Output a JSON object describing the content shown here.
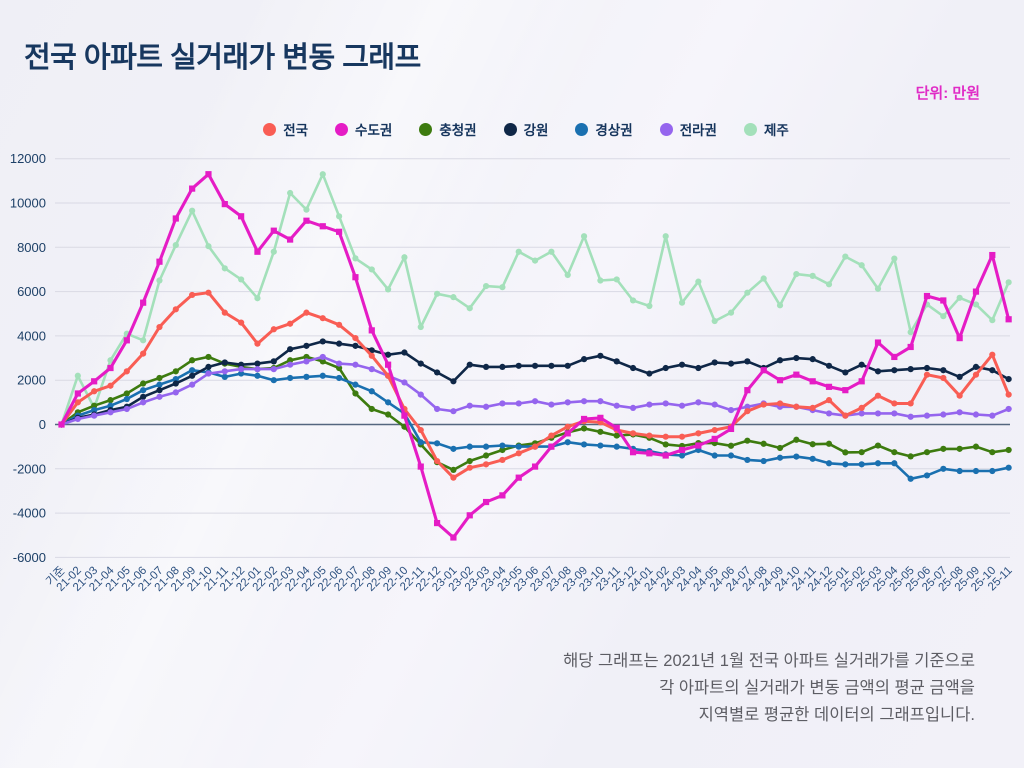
{
  "page": {
    "title": "전국 아파트 실거래가 변동 그래프",
    "unit_label": "단위: 만원"
  },
  "caption": {
    "line1": "해당 그래프는 2021년 1월 전국 아파트 실거래가를 기준으로",
    "line2": "각 아파트의 실거래가 변동 금액의 평균 금액을",
    "line3": "지역별로 평균한 데이터의 그래프입니다."
  },
  "chart_data": {
    "type": "line",
    "title": "전국 아파트 실거래가 변동 그래프",
    "unit": "만원",
    "grid": true,
    "legend_position": "top",
    "ylim": [
      -6000,
      12000
    ],
    "y_ticks": [
      12000,
      10000,
      8000,
      6000,
      4000,
      2000,
      0,
      -2000,
      -4000,
      -6000
    ],
    "x_labels": [
      "기준",
      "21-02",
      "21-03",
      "21-04",
      "21-05",
      "21-06",
      "21-07",
      "21-08",
      "21-09",
      "21-10",
      "21-11",
      "21-12",
      "22-01",
      "22-02",
      "22-03",
      "22-04",
      "22-05",
      "22-06",
      "22-07",
      "22-08",
      "22-09",
      "22-10",
      "22-11",
      "22-12",
      "23-01",
      "23-02",
      "23-03",
      "23-04",
      "23-05",
      "23-06",
      "23-07",
      "23-08",
      "23-09",
      "23-10",
      "23-11",
      "23-12",
      "24-01",
      "24-02",
      "24-03",
      "24-04",
      "24-05",
      "24-06",
      "24-07",
      "24-08",
      "24-09",
      "24-10",
      "24-11",
      "24-12",
      "25-01",
      "25-02",
      "25-03",
      "25-04",
      "25-05",
      "25-06",
      "25-07",
      "25-08",
      "25-09",
      "25-10",
      "25-11"
    ],
    "series": [
      {
        "name": "전국",
        "color": "#f95d54",
        "values": [
          0,
          1000,
          1500,
          1750,
          2400,
          3200,
          4400,
          5200,
          5850,
          5950,
          5050,
          4600,
          3650,
          4300,
          4550,
          5050,
          4800,
          4500,
          3900,
          3100,
          2200,
          700,
          -250,
          -1650,
          -2400,
          -1950,
          -1800,
          -1600,
          -1300,
          -1000,
          -500,
          -100,
          150,
          100,
          -250,
          -400,
          -500,
          -550,
          -550,
          -400,
          -250,
          -100,
          600,
          900,
          950,
          800,
          750,
          1100,
          400,
          750,
          1300,
          950,
          950,
          2250,
          2100,
          1300,
          2250,
          3150,
          1350
        ]
      },
      {
        "name": "수도권",
        "color": "#e51cc5",
        "values": [
          0,
          1400,
          1950,
          2550,
          3800,
          5500,
          7350,
          9300,
          10650,
          11300,
          9950,
          9400,
          7800,
          8750,
          8350,
          9200,
          8950,
          8700,
          6650,
          4250,
          2700,
          400,
          -1900,
          -4450,
          -5100,
          -4100,
          -3500,
          -3200,
          -2400,
          -1900,
          -1000,
          -400,
          250,
          300,
          -150,
          -1250,
          -1300,
          -1400,
          -1150,
          -950,
          -650,
          -200,
          1550,
          2450,
          2000,
          2250,
          1950,
          1700,
          1550,
          1950,
          3700,
          3050,
          3500,
          5800,
          5600,
          3900,
          6000,
          7650,
          4750
        ]
      },
      {
        "name": "충청권",
        "color": "#3d7b0f",
        "values": [
          0,
          550,
          850,
          1100,
          1400,
          1850,
          2100,
          2400,
          2900,
          3050,
          2750,
          2600,
          2500,
          2550,
          2900,
          3050,
          2850,
          2550,
          1400,
          700,
          450,
          -100,
          -900,
          -1700,
          -2050,
          -1650,
          -1400,
          -1150,
          -950,
          -850,
          -600,
          -350,
          -180,
          -330,
          -500,
          -450,
          -600,
          -900,
          -970,
          -840,
          -840,
          -960,
          -730,
          -870,
          -1060,
          -690,
          -890,
          -870,
          -1260,
          -1250,
          -950,
          -1250,
          -1440,
          -1250,
          -1100,
          -1100,
          -1000,
          -1250,
          -1150
        ]
      },
      {
        "name": "강원",
        "color": "#0f2747",
        "values": [
          0,
          300,
          450,
          650,
          800,
          1250,
          1550,
          1850,
          2200,
          2600,
          2800,
          2700,
          2750,
          2850,
          3400,
          3550,
          3750,
          3650,
          3550,
          3350,
          3150,
          3250,
          2750,
          2350,
          1950,
          2700,
          2600,
          2600,
          2650,
          2650,
          2650,
          2650,
          2950,
          3100,
          2850,
          2550,
          2300,
          2550,
          2700,
          2550,
          2800,
          2750,
          2850,
          2550,
          2900,
          3000,
          2950,
          2650,
          2350,
          2700,
          2400,
          2450,
          2500,
          2550,
          2450,
          2150,
          2600,
          2450,
          2050
        ]
      },
      {
        "name": "경상권",
        "color": "#1a70b0",
        "values": [
          0,
          400,
          650,
          850,
          1150,
          1550,
          1800,
          2050,
          2450,
          2350,
          2150,
          2300,
          2200,
          2000,
          2100,
          2150,
          2200,
          2100,
          1800,
          1500,
          1000,
          500,
          -800,
          -850,
          -1100,
          -1000,
          -1000,
          -950,
          -1000,
          -1000,
          -1000,
          -800,
          -900,
          -950,
          -1000,
          -1100,
          -1200,
          -1350,
          -1400,
          -1150,
          -1400,
          -1400,
          -1600,
          -1650,
          -1500,
          -1450,
          -1550,
          -1750,
          -1800,
          -1800,
          -1750,
          -1750,
          -2450,
          -2300,
          -2000,
          -2100,
          -2100,
          -2100,
          -1950
        ]
      },
      {
        "name": "전라권",
        "color": "#9565ee",
        "values": [
          0,
          250,
          400,
          550,
          700,
          1000,
          1250,
          1450,
          1800,
          2300,
          2400,
          2500,
          2500,
          2500,
          2700,
          2850,
          3050,
          2750,
          2700,
          2500,
          2200,
          1900,
          1350,
          700,
          600,
          850,
          800,
          950,
          950,
          1050,
          900,
          1000,
          1050,
          1050,
          850,
          750,
          900,
          950,
          850,
          1000,
          900,
          650,
          800,
          950,
          800,
          800,
          650,
          500,
          400,
          500,
          500,
          500,
          350,
          400,
          450,
          550,
          450,
          400,
          700
        ]
      },
      {
        "name": "제주",
        "color": "#a3e0ba",
        "values": [
          0,
          2200,
          750,
          2900,
          4100,
          3800,
          6500,
          8100,
          9650,
          8050,
          7050,
          6550,
          5700,
          7800,
          10450,
          9700,
          11300,
          9400,
          7500,
          7000,
          6100,
          7550,
          4400,
          5900,
          5750,
          5250,
          6250,
          6200,
          7800,
          7400,
          7800,
          6750,
          8500,
          6500,
          6550,
          5600,
          5350,
          8500,
          5500,
          6450,
          4670,
          5050,
          5950,
          6590,
          5380,
          6790,
          6710,
          6330,
          7580,
          7190,
          6130,
          7490,
          4170,
          5420,
          4890,
          5720,
          5420,
          4710,
          6420
        ]
      }
    ]
  }
}
